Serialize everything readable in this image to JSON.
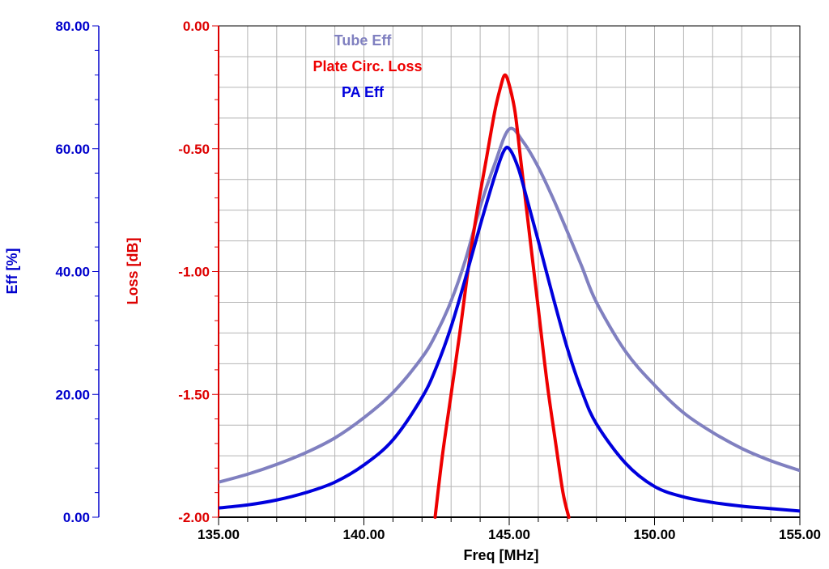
{
  "chart_data": {
    "type": "line",
    "x_axis": {
      "label": "Freq [MHz]",
      "range": [
        135,
        155
      ],
      "tick_labels": [
        "135.00",
        "140.00",
        "145.00",
        "150.00",
        "155.00"
      ],
      "tick_values": [
        135,
        140,
        145,
        150,
        155
      ]
    },
    "y_axis_left_outer": {
      "label": "Eff [%]",
      "range": [
        0,
        80
      ],
      "tick_labels": [
        "0.00",
        "20.00",
        "40.00",
        "60.00",
        "80.00"
      ],
      "tick_values": [
        0,
        20,
        40,
        60,
        80
      ],
      "color": "#0000cc"
    },
    "y_axis_left_inner": {
      "label": "Loss [dB]",
      "range": [
        -2,
        0
      ],
      "tick_labels": [
        "-2.00",
        "-1.50",
        "-1.00",
        "-0.50",
        "0.00"
      ],
      "tick_values": [
        -2,
        -1.5,
        -1,
        -0.5,
        0
      ],
      "color": "#dd0000"
    },
    "grid": true,
    "legend": [
      "Tube Eff",
      "Plate Circ. Loss",
      "PA Eff"
    ],
    "series": [
      {
        "name": "Tube Eff",
        "axis": "eff",
        "color": "#8080c0",
        "x": [
          135,
          136,
          137,
          138,
          139,
          140,
          141,
          142,
          142.5,
          143,
          143.5,
          144,
          144.5,
          145,
          145.5,
          146,
          146.5,
          147,
          147.5,
          148,
          149,
          150,
          151,
          152,
          153,
          154,
          155
        ],
        "y": [
          5.7,
          7.0,
          8.6,
          10.5,
          12.9,
          16.2,
          20.3,
          26.0,
          30.0,
          35.2,
          42.0,
          50.5,
          57.5,
          63.2,
          61.0,
          57.0,
          52.0,
          46.5,
          40.8,
          35.0,
          27.0,
          21.5,
          17.0,
          13.8,
          11.2,
          9.2,
          7.6
        ]
      },
      {
        "name": "Plate Circ. Loss",
        "axis": "loss",
        "color": "#ee0000",
        "x": [
          142.45,
          142.7,
          143.0,
          143.3,
          143.6,
          143.9,
          144.2,
          144.5,
          144.7,
          144.85,
          145.0,
          145.2,
          145.4,
          145.7,
          146.0,
          146.3,
          146.6,
          146.85,
          147.05
        ],
        "y": [
          -2.0,
          -1.75,
          -1.5,
          -1.25,
          -0.98,
          -0.75,
          -0.55,
          -0.35,
          -0.25,
          -0.2,
          -0.24,
          -0.35,
          -0.55,
          -0.85,
          -1.15,
          -1.45,
          -1.7,
          -1.9,
          -2.0
        ]
      },
      {
        "name": "PA Eff",
        "axis": "eff",
        "color": "#0000dd",
        "x": [
          135,
          136,
          137,
          138,
          139,
          140,
          141,
          142,
          142.5,
          143,
          143.5,
          144,
          144.5,
          144.8,
          145,
          145.3,
          145.6,
          146,
          146.5,
          147,
          147.5,
          148,
          149,
          150,
          151,
          152,
          153,
          154,
          155
        ],
        "y": [
          1.5,
          2.0,
          2.8,
          4.0,
          5.7,
          8.5,
          12.6,
          19.5,
          24.5,
          31.0,
          39.0,
          47.5,
          55.5,
          59.5,
          60.0,
          57.0,
          52.0,
          45.0,
          36.0,
          27.5,
          20.5,
          15.2,
          8.8,
          5.0,
          3.3,
          2.4,
          1.8,
          1.4,
          1.0
        ]
      }
    ]
  }
}
